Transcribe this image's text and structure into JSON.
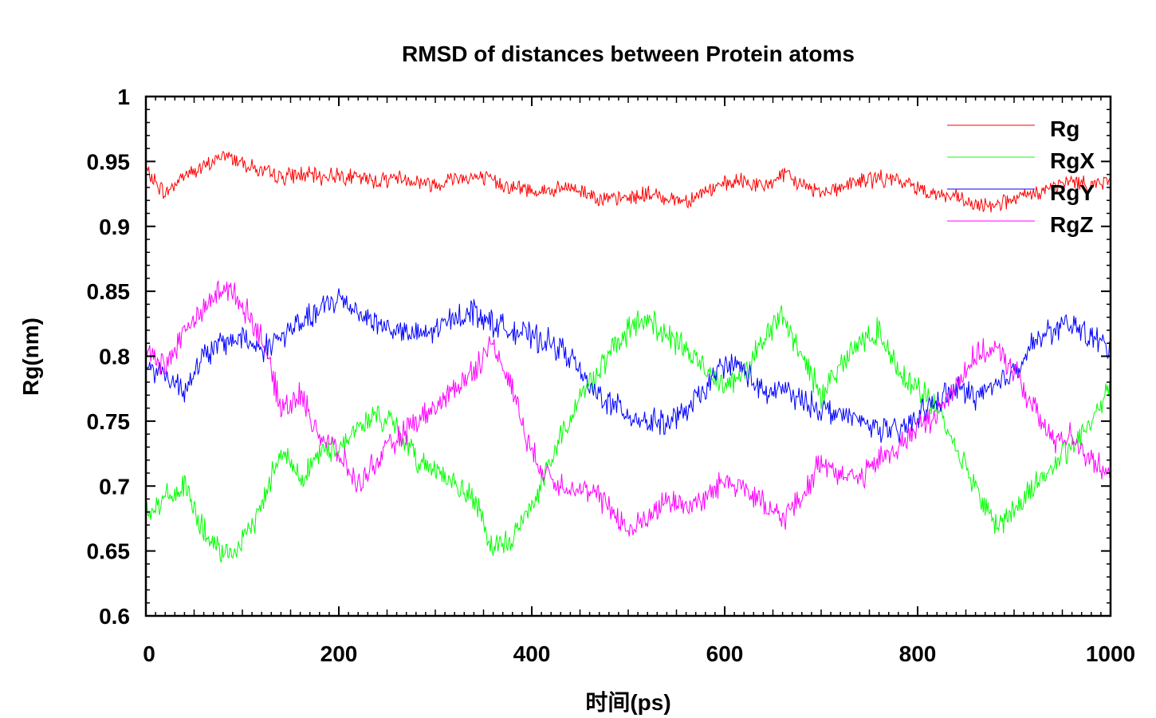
{
  "chart_data": {
    "type": "line",
    "title": "RMSD of distances between Protein atoms",
    "xlabel": "时间(ps)",
    "ylabel": "Rg(nm)",
    "xlim": [
      0,
      1000
    ],
    "ylim": [
      0.6,
      1.0
    ],
    "xticks": [
      0,
      200,
      400,
      600,
      800,
      1000
    ],
    "yticks": [
      0.6,
      0.65,
      0.7,
      0.75,
      0.8,
      0.85,
      0.9,
      0.95,
      1.0
    ],
    "ytick_labels": [
      "0.6",
      "0.65",
      "0.7",
      "0.75",
      "0.8",
      "0.85",
      "0.9",
      "0.95",
      "1"
    ],
    "xtick_labels": [
      "0",
      "200",
      "400",
      "600",
      "800",
      "1000"
    ],
    "grid": false,
    "legend": "top-right",
    "x": [
      0,
      20,
      40,
      60,
      80,
      100,
      120,
      140,
      160,
      180,
      200,
      220,
      240,
      260,
      280,
      300,
      320,
      340,
      360,
      380,
      400,
      420,
      440,
      460,
      480,
      500,
      520,
      540,
      560,
      580,
      600,
      620,
      640,
      660,
      680,
      700,
      720,
      740,
      760,
      780,
      800,
      820,
      840,
      860,
      880,
      900,
      920,
      940,
      960,
      980,
      1000
    ],
    "series": [
      {
        "name": "Rg",
        "color": "#ff0000",
        "values": [
          0.943,
          0.925,
          0.94,
          0.945,
          0.955,
          0.95,
          0.942,
          0.938,
          0.94,
          0.938,
          0.94,
          0.937,
          0.935,
          0.938,
          0.935,
          0.932,
          0.938,
          0.938,
          0.935,
          0.93,
          0.928,
          0.927,
          0.93,
          0.925,
          0.92,
          0.922,
          0.925,
          0.922,
          0.92,
          0.927,
          0.932,
          0.935,
          0.93,
          0.94,
          0.932,
          0.927,
          0.93,
          0.935,
          0.937,
          0.935,
          0.93,
          0.925,
          0.922,
          0.915,
          0.918,
          0.92,
          0.925,
          0.93,
          0.935,
          0.932,
          0.935
        ]
      },
      {
        "name": "RgX",
        "color": "#00ff00",
        "values": [
          0.68,
          0.69,
          0.7,
          0.665,
          0.645,
          0.655,
          0.685,
          0.73,
          0.705,
          0.725,
          0.73,
          0.745,
          0.755,
          0.745,
          0.72,
          0.715,
          0.7,
          0.69,
          0.65,
          0.66,
          0.685,
          0.72,
          0.755,
          0.78,
          0.8,
          0.82,
          0.83,
          0.815,
          0.805,
          0.79,
          0.78,
          0.785,
          0.815,
          0.83,
          0.8,
          0.77,
          0.795,
          0.81,
          0.82,
          0.79,
          0.775,
          0.76,
          0.73,
          0.7,
          0.67,
          0.68,
          0.7,
          0.715,
          0.73,
          0.75,
          0.78
        ]
      },
      {
        "name": "RgY",
        "color": "#0000ff",
        "values": [
          0.795,
          0.785,
          0.775,
          0.8,
          0.81,
          0.815,
          0.805,
          0.815,
          0.825,
          0.835,
          0.845,
          0.835,
          0.825,
          0.82,
          0.815,
          0.82,
          0.83,
          0.835,
          0.825,
          0.82,
          0.815,
          0.81,
          0.8,
          0.775,
          0.765,
          0.755,
          0.75,
          0.748,
          0.757,
          0.775,
          0.795,
          0.79,
          0.77,
          0.775,
          0.765,
          0.76,
          0.755,
          0.75,
          0.745,
          0.74,
          0.755,
          0.765,
          0.775,
          0.77,
          0.775,
          0.79,
          0.81,
          0.82,
          0.825,
          0.815,
          0.805
        ]
      },
      {
        "name": "RgZ",
        "color": "#ff00ff",
        "values": [
          0.81,
          0.79,
          0.82,
          0.835,
          0.855,
          0.84,
          0.815,
          0.76,
          0.77,
          0.74,
          0.725,
          0.7,
          0.72,
          0.735,
          0.75,
          0.76,
          0.775,
          0.79,
          0.81,
          0.775,
          0.725,
          0.705,
          0.7,
          0.695,
          0.685,
          0.665,
          0.675,
          0.69,
          0.685,
          0.69,
          0.705,
          0.7,
          0.685,
          0.675,
          0.69,
          0.72,
          0.71,
          0.705,
          0.72,
          0.73,
          0.745,
          0.755,
          0.78,
          0.8,
          0.805,
          0.79,
          0.76,
          0.735,
          0.74,
          0.72,
          0.705
        ]
      }
    ]
  }
}
